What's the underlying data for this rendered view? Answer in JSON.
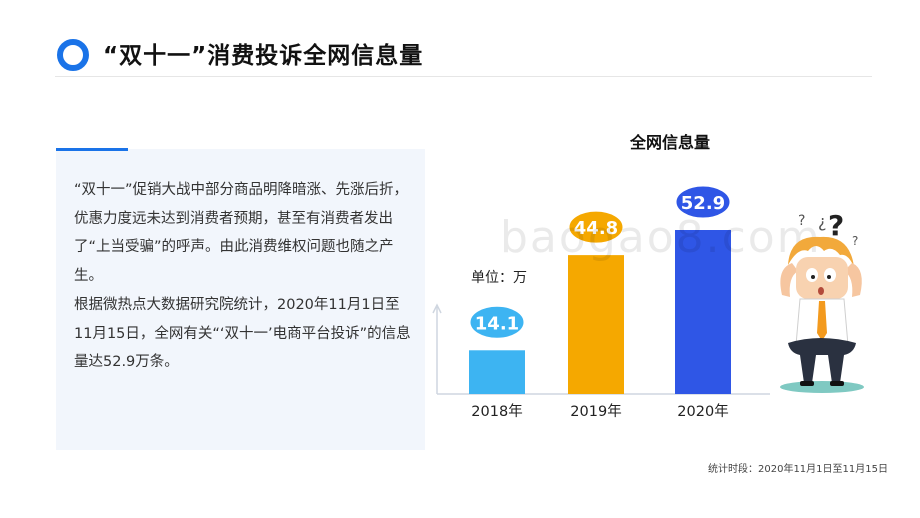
{
  "header": {
    "title": "“双十一”消费投诉全网信息量",
    "accent_color": "#1a73e8"
  },
  "panel": {
    "paragraphs": [
      "“双十一”促销大战中部分商品明降暗涨、先涨后折，优惠力度远未达到消费者预期，甚至有消费者发出了“上当受骗”的呼声。由此消费维权问题也随之产生。",
      "根据微热点大数据研究院统计，2020年11月1日至11月15日，全网有关“‘双十一’电商平台投诉”的信息量达52.9万条。"
    ]
  },
  "watermark": "baogao8.com",
  "footnote": "统计时段：2020年11月1日至11月15日",
  "cartoon": {
    "icon": "confused-man-icon"
  },
  "chart_data": {
    "type": "bar",
    "title": "全网信息量",
    "unit_label": "单位：万",
    "categories": [
      "2018年",
      "2019年",
      "2020年"
    ],
    "values": [
      14.1,
      44.8,
      52.9
    ],
    "value_labels": [
      "14.1",
      "44.8",
      "52.9"
    ],
    "colors": [
      "#3db4f2",
      "#f5a800",
      "#2f56e6"
    ],
    "grid": false,
    "legend": "none"
  }
}
